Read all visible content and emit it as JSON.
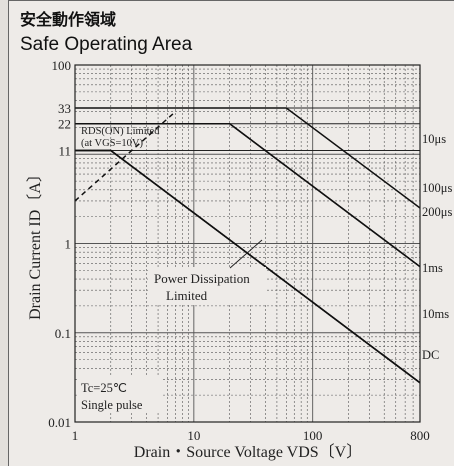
{
  "title_jp": "安全動作領域",
  "title_en": "Safe Operating Area",
  "chart_data": {
    "type": "line",
    "xscale": "log",
    "yscale": "log",
    "xlim": [
      1,
      800
    ],
    "ylim": [
      0.01,
      100
    ],
    "x_ticks": [
      {
        "value": 1,
        "label": "1"
      },
      {
        "value": 10,
        "label": "10"
      },
      {
        "value": 100,
        "label": "100"
      },
      {
        "value": 800,
        "label": "800"
      }
    ],
    "y_ticks": [
      {
        "value": 100,
        "label": "100"
      },
      {
        "value": 33,
        "label": "33"
      },
      {
        "value": 22,
        "label": "22"
      },
      {
        "value": 11,
        "label": "11"
      },
      {
        "value": 1,
        "label": "1"
      },
      {
        "value": 0.1,
        "label": "0.1"
      },
      {
        "value": 0.01,
        "label": "0.01"
      }
    ],
    "xlabel": "Drain・Source Voltage  VDS〔V〕",
    "ylabel": "Drain Current  ID〔A〕",
    "grid": true,
    "series": [
      {
        "name": "10μs",
        "style": "solid",
        "points": [
          [
            1,
            33
          ],
          [
            60,
            33
          ],
          [
            800,
            2.5
          ]
        ]
      },
      {
        "name": "100μs",
        "style": "solid",
        "points": [
          [
            1,
            22
          ],
          [
            20,
            22
          ],
          [
            800,
            0.55
          ]
        ]
      },
      {
        "name": "200μs",
        "style": "solid",
        "points": [
          [
            1,
            22
          ],
          [
            20,
            22
          ],
          [
            800,
            0.55
          ]
        ]
      },
      {
        "name": "1ms",
        "style": "solid",
        "points": [
          [
            1,
            11
          ],
          [
            2,
            11
          ],
          [
            800,
            0.0275
          ]
        ]
      },
      {
        "name": "10ms",
        "style": "solid",
        "points": [
          [
            1,
            11
          ],
          [
            2,
            11
          ],
          [
            800,
            0.0275
          ]
        ]
      },
      {
        "name": "DC",
        "style": "solid",
        "points": [
          [
            1,
            11
          ],
          [
            2,
            11
          ],
          [
            800,
            0.0275
          ]
        ]
      },
      {
        "name": "RDS(ON) Limited",
        "style": "dashed",
        "points": [
          [
            1,
            3
          ],
          [
            7,
            30
          ]
        ]
      }
    ],
    "line_labels": [
      "10μs",
      "100μs",
      "200μs",
      "1ms",
      "10ms",
      "DC"
    ],
    "annotations": {
      "rds_line1": "RDS(ON) Limited",
      "rds_line2": "(at VGS=10V)",
      "pd_line1": "Power Dissipation",
      "pd_line2": "Limited",
      "tc": "Tc=25℃",
      "pulse": "Single pulse"
    }
  }
}
